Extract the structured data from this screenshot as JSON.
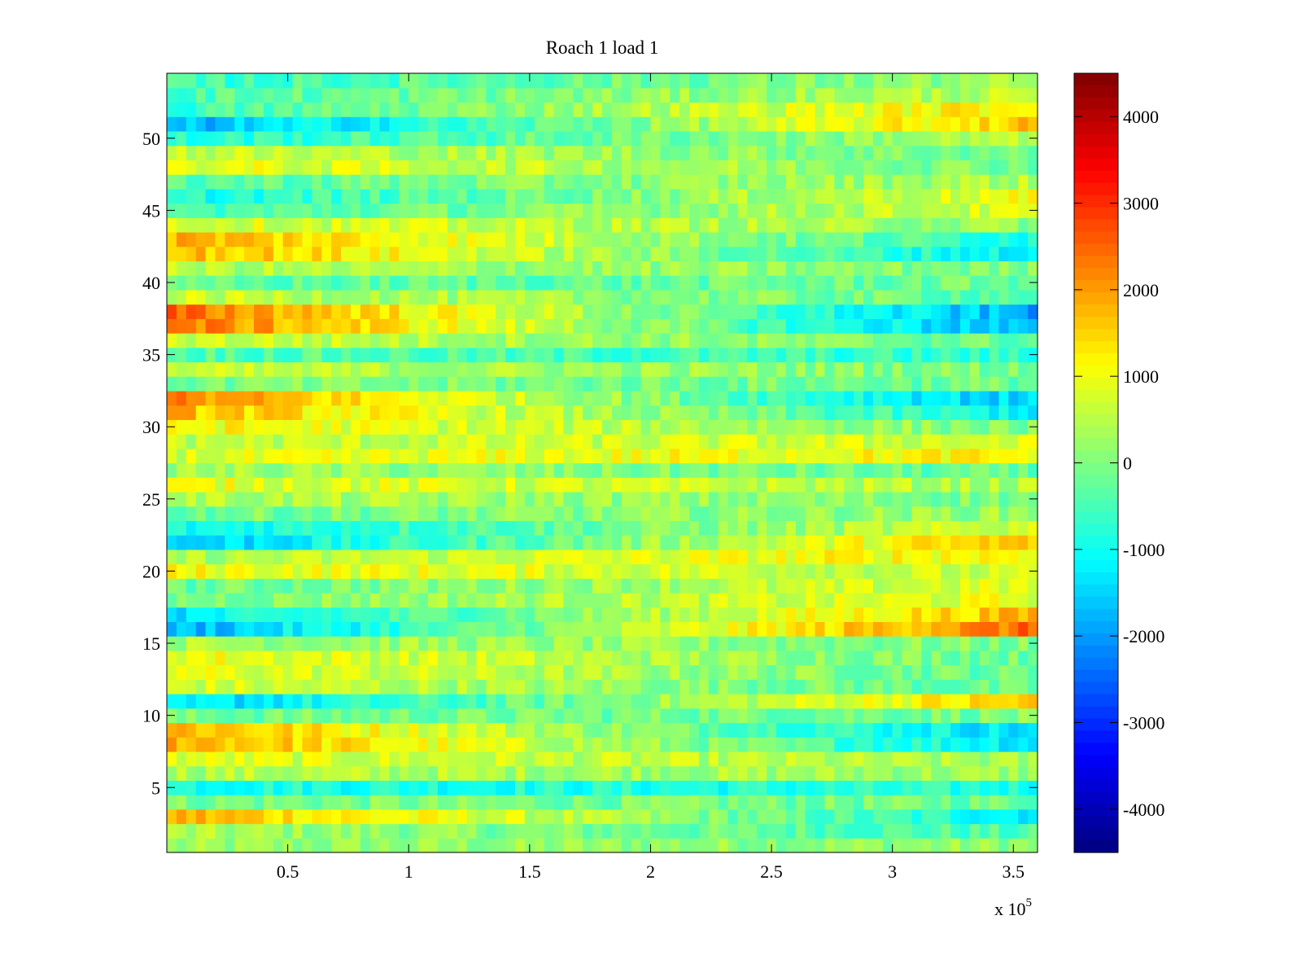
{
  "chart_data": {
    "type": "heatmap",
    "title": "Roach 1 load 1",
    "xlabel": "",
    "ylabel": "",
    "x_exponent_label": "x 10",
    "x_exponent_power": "5",
    "xlim": [
      0,
      3.6
    ],
    "ylim": [
      0.5,
      54.5
    ],
    "x_ticks": [
      {
        "value": 0.5,
        "label": "0.5"
      },
      {
        "value": 1,
        "label": "1"
      },
      {
        "value": 1.5,
        "label": "1.5"
      },
      {
        "value": 2,
        "label": "2"
      },
      {
        "value": 2.5,
        "label": "2.5"
      },
      {
        "value": 3,
        "label": "3"
      },
      {
        "value": 3.5,
        "label": "3.5"
      }
    ],
    "y_ticks": [
      {
        "value": 5,
        "label": "5"
      },
      {
        "value": 10,
        "label": "10"
      },
      {
        "value": 15,
        "label": "15"
      },
      {
        "value": 20,
        "label": "20"
      },
      {
        "value": 25,
        "label": "25"
      },
      {
        "value": 30,
        "label": "30"
      },
      {
        "value": 35,
        "label": "35"
      },
      {
        "value": 40,
        "label": "40"
      },
      {
        "value": 45,
        "label": "45"
      },
      {
        "value": 50,
        "label": "50"
      }
    ],
    "colorbar": {
      "colormap": "jet",
      "clim": [
        -4500,
        4500
      ],
      "ticks": [
        {
          "value": 4000,
          "label": "4000"
        },
        {
          "value": 3000,
          "label": "3000"
        },
        {
          "value": 2000,
          "label": "2000"
        },
        {
          "value": 1000,
          "label": "1000"
        },
        {
          "value": 0,
          "label": "0"
        },
        {
          "value": -1000,
          "label": "-1000"
        },
        {
          "value": -2000,
          "label": "-2000"
        },
        {
          "value": -3000,
          "label": "-3000"
        },
        {
          "value": -4000,
          "label": "-4000"
        }
      ]
    },
    "rows": 54,
    "row_trend_values": {
      "description_x_points": [
        0,
        3.6
      ],
      "start_end": [
        [
          0,
          0
        ],
        [
          200,
          -700
        ],
        [
          1700,
          -1300
        ],
        [
          -200,
          -300
        ],
        [
          -1000,
          -1000
        ],
        [
          300,
          100
        ],
        [
          700,
          100
        ],
        [
          1800,
          -1400
        ],
        [
          1700,
          -1600
        ],
        [
          -300,
          -200
        ],
        [
          -1700,
          1400
        ],
        [
          600,
          -500
        ],
        [
          800,
          -400
        ],
        [
          900,
          -300
        ],
        [
          200,
          -200
        ],
        [
          -2000,
          2300
        ],
        [
          -1500,
          1600
        ],
        [
          -200,
          800
        ],
        [
          -400,
          700
        ],
        [
          900,
          400
        ],
        [
          200,
          1100
        ],
        [
          -1800,
          1500
        ],
        [
          -1200,
          600
        ],
        [
          -300,
          100
        ],
        [
          300,
          -200
        ],
        [
          800,
          200
        ],
        [
          200,
          -500
        ],
        [
          600,
          1000
        ],
        [
          400,
          600
        ],
        [
          1000,
          -200
        ],
        [
          1600,
          -1300
        ],
        [
          2000,
          -1800
        ],
        [
          -200,
          -300
        ],
        [
          400,
          -200
        ],
        [
          -500,
          -900
        ],
        [
          600,
          -400
        ],
        [
          2200,
          -2000
        ],
        [
          2300,
          -2100
        ],
        [
          500,
          -500
        ],
        [
          -500,
          -300
        ],
        [
          300,
          -200
        ],
        [
          1700,
          -1400
        ],
        [
          1700,
          -1000
        ],
        [
          700,
          0
        ],
        [
          -700,
          600
        ],
        [
          -1100,
          800
        ],
        [
          -500,
          300
        ],
        [
          800,
          -200
        ],
        [
          500,
          -300
        ],
        [
          -1000,
          300
        ],
        [
          -2000,
          1500
        ],
        [
          -800,
          1200
        ],
        [
          -600,
          400
        ],
        [
          -800,
          100
        ]
      ]
    }
  }
}
